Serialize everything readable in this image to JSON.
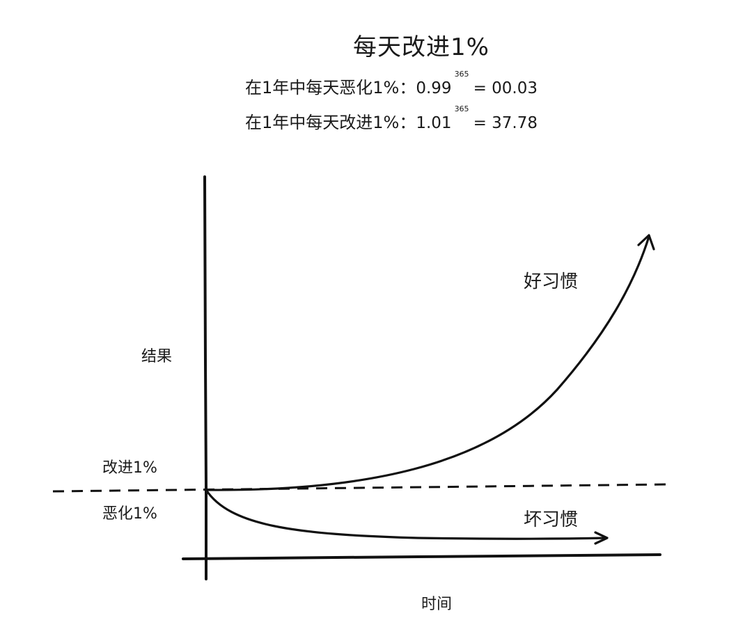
{
  "title": "每天改进1%",
  "formulas": [
    {
      "prefix": "在1年中每天恶化1%：",
      "base": "0.99",
      "exponent": "365",
      "result": "= 00.03"
    },
    {
      "prefix": "在1年中每天改进1%：",
      "base": "1.01",
      "exponent": "365",
      "result": "= 37.78"
    }
  ],
  "axes": {
    "y_label": "结果",
    "x_label": "时间"
  },
  "baseline": {
    "above_label": "改进1%",
    "below_label": "恶化1%"
  },
  "curves": {
    "good_label": "好习惯",
    "bad_label": "坏习惯"
  },
  "colors": {
    "ink": "#111111",
    "background": "#ffffff"
  }
}
